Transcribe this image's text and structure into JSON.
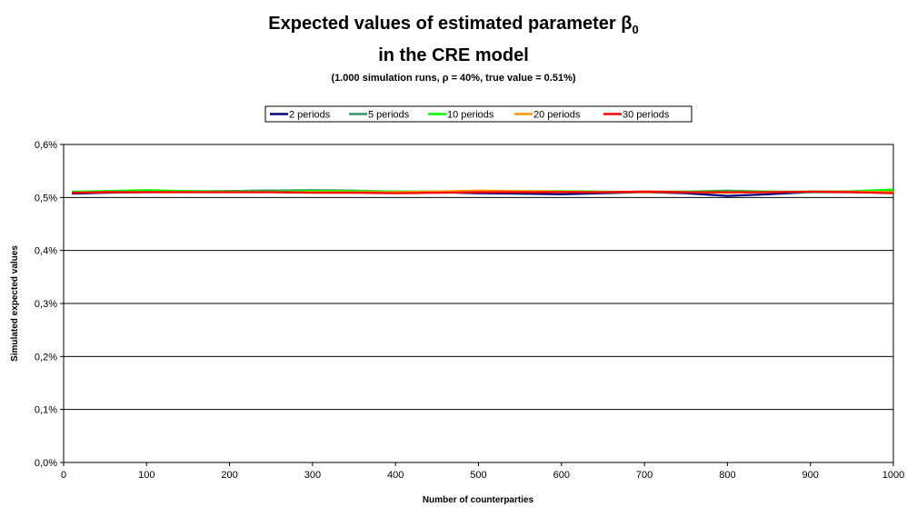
{
  "chart_data": {
    "type": "line",
    "title_line1_prefix": "Expected values of estimated parameter β",
    "title_line1_subscript": "0",
    "title_line2": "in the CRE model",
    "subtitle": "(1.000 simulation runs, ρ = 40%, true value = 0.51%)",
    "xlabel": "Number of counterparties",
    "ylabel": "Simulated expected values",
    "xlim": [
      0,
      1000
    ],
    "ylim": [
      0,
      0.6
    ],
    "x_ticks": [
      "0",
      "100",
      "200",
      "300",
      "400",
      "500",
      "600",
      "700",
      "800",
      "900",
      "1000"
    ],
    "y_ticks": [
      "0,0%",
      "0,1%",
      "0,2%",
      "0,3%",
      "0,4%",
      "0,5%",
      "0,6%"
    ],
    "grid": true,
    "legend_position": "top",
    "x": [
      10,
      50,
      100,
      150,
      200,
      250,
      300,
      350,
      400,
      450,
      500,
      550,
      600,
      650,
      700,
      750,
      800,
      850,
      900,
      950,
      1000
    ],
    "series": [
      {
        "name": "2 periods",
        "color": "#000080",
        "values": [
          0.507,
          0.509,
          0.51,
          0.511,
          0.512,
          0.513,
          0.513,
          0.512,
          0.511,
          0.51,
          0.508,
          0.507,
          0.506,
          0.508,
          0.51,
          0.508,
          0.503,
          0.506,
          0.51,
          0.51,
          0.509
        ]
      },
      {
        "name": "5 periods",
        "color": "#339966",
        "values": [
          0.509,
          0.511,
          0.512,
          0.512,
          0.512,
          0.513,
          0.514,
          0.513,
          0.511,
          0.511,
          0.512,
          0.511,
          0.51,
          0.51,
          0.511,
          0.511,
          0.513,
          0.511,
          0.51,
          0.511,
          0.512
        ]
      },
      {
        "name": "10 periods",
        "color": "#00FF00",
        "values": [
          0.511,
          0.512,
          0.514,
          0.512,
          0.511,
          0.511,
          0.512,
          0.512,
          0.511,
          0.511,
          0.511,
          0.512,
          0.512,
          0.511,
          0.51,
          0.511,
          0.511,
          0.511,
          0.511,
          0.512,
          0.515
        ]
      },
      {
        "name": "20 periods",
        "color": "#FF9900",
        "values": [
          0.509,
          0.51,
          0.51,
          0.51,
          0.51,
          0.51,
          0.51,
          0.51,
          0.51,
          0.511,
          0.513,
          0.512,
          0.511,
          0.51,
          0.51,
          0.51,
          0.509,
          0.51,
          0.511,
          0.511,
          0.51
        ]
      },
      {
        "name": "30 periods",
        "color": "#FF0000",
        "values": [
          0.509,
          0.51,
          0.51,
          0.51,
          0.51,
          0.51,
          0.509,
          0.509,
          0.508,
          0.509,
          0.51,
          0.51,
          0.51,
          0.51,
          0.511,
          0.51,
          0.51,
          0.51,
          0.511,
          0.51,
          0.508
        ]
      }
    ]
  }
}
